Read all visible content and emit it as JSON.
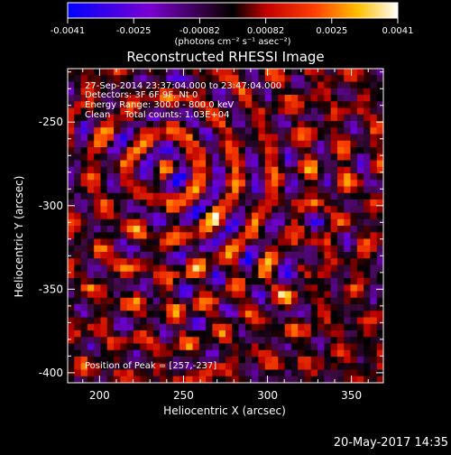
{
  "colorbar": {
    "tick_labels": [
      "-0.0041",
      "-0.0025",
      "-0.00082",
      "0.00082",
      "0.0025",
      "0.0041"
    ],
    "unit_label": "(photons cm⁻² s⁻¹ asec⁻²)",
    "colormap": "blue-purple-black-red-orange-yellow-white",
    "range": [
      -0.0041,
      0.0041
    ]
  },
  "plot": {
    "title": "Reconstructed RHESSI Image",
    "x_axis": {
      "label": "Heliocentric X (arcsec)",
      "tick_labels": [
        "200",
        "250",
        "300",
        "350"
      ],
      "ticks": [
        200,
        250,
        300,
        350
      ],
      "range": [
        181,
        369
      ]
    },
    "y_axis": {
      "label": "Heliocentric Y (arcsec)",
      "tick_labels": [
        "-250",
        "-300",
        "-350",
        "-400"
      ],
      "ticks": [
        -250,
        -300,
        -350,
        -400
      ],
      "range": [
        -406,
        -218
      ]
    },
    "annotations": {
      "time_range": "27-Sep-2014 23:37:04.000 to 23:47:04.000",
      "detectors": "Detectors: 3F 6F 9F, Nt 0",
      "energy_range": "Energy Range: 300.0 - 800.0 keV",
      "method": "Clean     Total counts: 1.03E+04",
      "peak": "Position of Peak = [257,-237]"
    }
  },
  "timestamp": "20-May-2017 14:35"
}
